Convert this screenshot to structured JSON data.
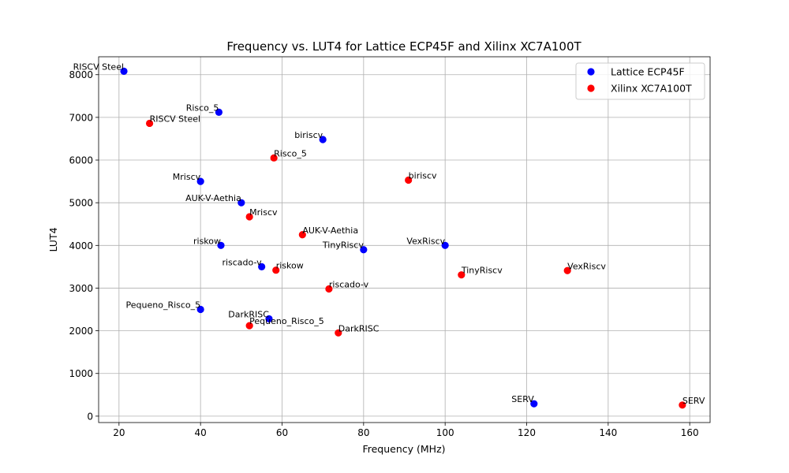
{
  "chart_data": {
    "type": "scatter",
    "title": "Frequency vs. LUT4 for Lattice ECP45F and Xilinx XC7A100T",
    "xlabel": "Frequency (MHz)",
    "ylabel": "LUT4",
    "xlim": [
      15,
      165
    ],
    "ylim": [
      -150,
      8420
    ],
    "xticks": [
      20,
      40,
      60,
      80,
      100,
      120,
      140,
      160
    ],
    "yticks": [
      0,
      1000,
      2000,
      3000,
      4000,
      5000,
      6000,
      7000,
      8000
    ],
    "grid": true,
    "legend_position": "top-right",
    "series": [
      {
        "name": "Lattice ECP45F",
        "color": "#0000ff",
        "points": [
          {
            "label": "RISCV Steel",
            "x": 21.2,
            "y": 8080
          },
          {
            "label": "Risco_5",
            "x": 44.5,
            "y": 7120
          },
          {
            "label": "biriscv",
            "x": 70,
            "y": 6480
          },
          {
            "label": "Mriscv",
            "x": 40,
            "y": 5500
          },
          {
            "label": "AUK-V-Aethia",
            "x": 50,
            "y": 5000
          },
          {
            "label": "riskow",
            "x": 45,
            "y": 4000
          },
          {
            "label": "TinyRiscv",
            "x": 80,
            "y": 3900
          },
          {
            "label": "VexRiscv",
            "x": 100,
            "y": 4000
          },
          {
            "label": "riscado-v",
            "x": 55,
            "y": 3500
          },
          {
            "label": "Pequeno_Risco_5",
            "x": 40,
            "y": 2500
          },
          {
            "label": "DarkRISC",
            "x": 56.8,
            "y": 2280
          },
          {
            "label": "SERV",
            "x": 121.8,
            "y": 290
          }
        ]
      },
      {
        "name": "Xilinx XC7A100T",
        "color": "#ff0000",
        "points": [
          {
            "label": "RISCV Steel",
            "x": 27.5,
            "y": 6860
          },
          {
            "label": "Risco_5",
            "x": 58,
            "y": 6050
          },
          {
            "label": "biriscv",
            "x": 91,
            "y": 5530
          },
          {
            "label": "Mriscv",
            "x": 52,
            "y": 4670
          },
          {
            "label": "AUK-V-Aethia",
            "x": 65,
            "y": 4250
          },
          {
            "label": "riskow",
            "x": 58.5,
            "y": 3420
          },
          {
            "label": "riscado-v",
            "x": 71.5,
            "y": 2980
          },
          {
            "label": "TinyRiscv",
            "x": 104,
            "y": 3310
          },
          {
            "label": "VexRiscv",
            "x": 130,
            "y": 3410
          },
          {
            "label": "Pequeno_Risco_5",
            "x": 52,
            "y": 2120
          },
          {
            "label": "DarkRISC",
            "x": 73.8,
            "y": 1950
          },
          {
            "label": "SERV",
            "x": 158.2,
            "y": 260
          }
        ]
      }
    ]
  }
}
